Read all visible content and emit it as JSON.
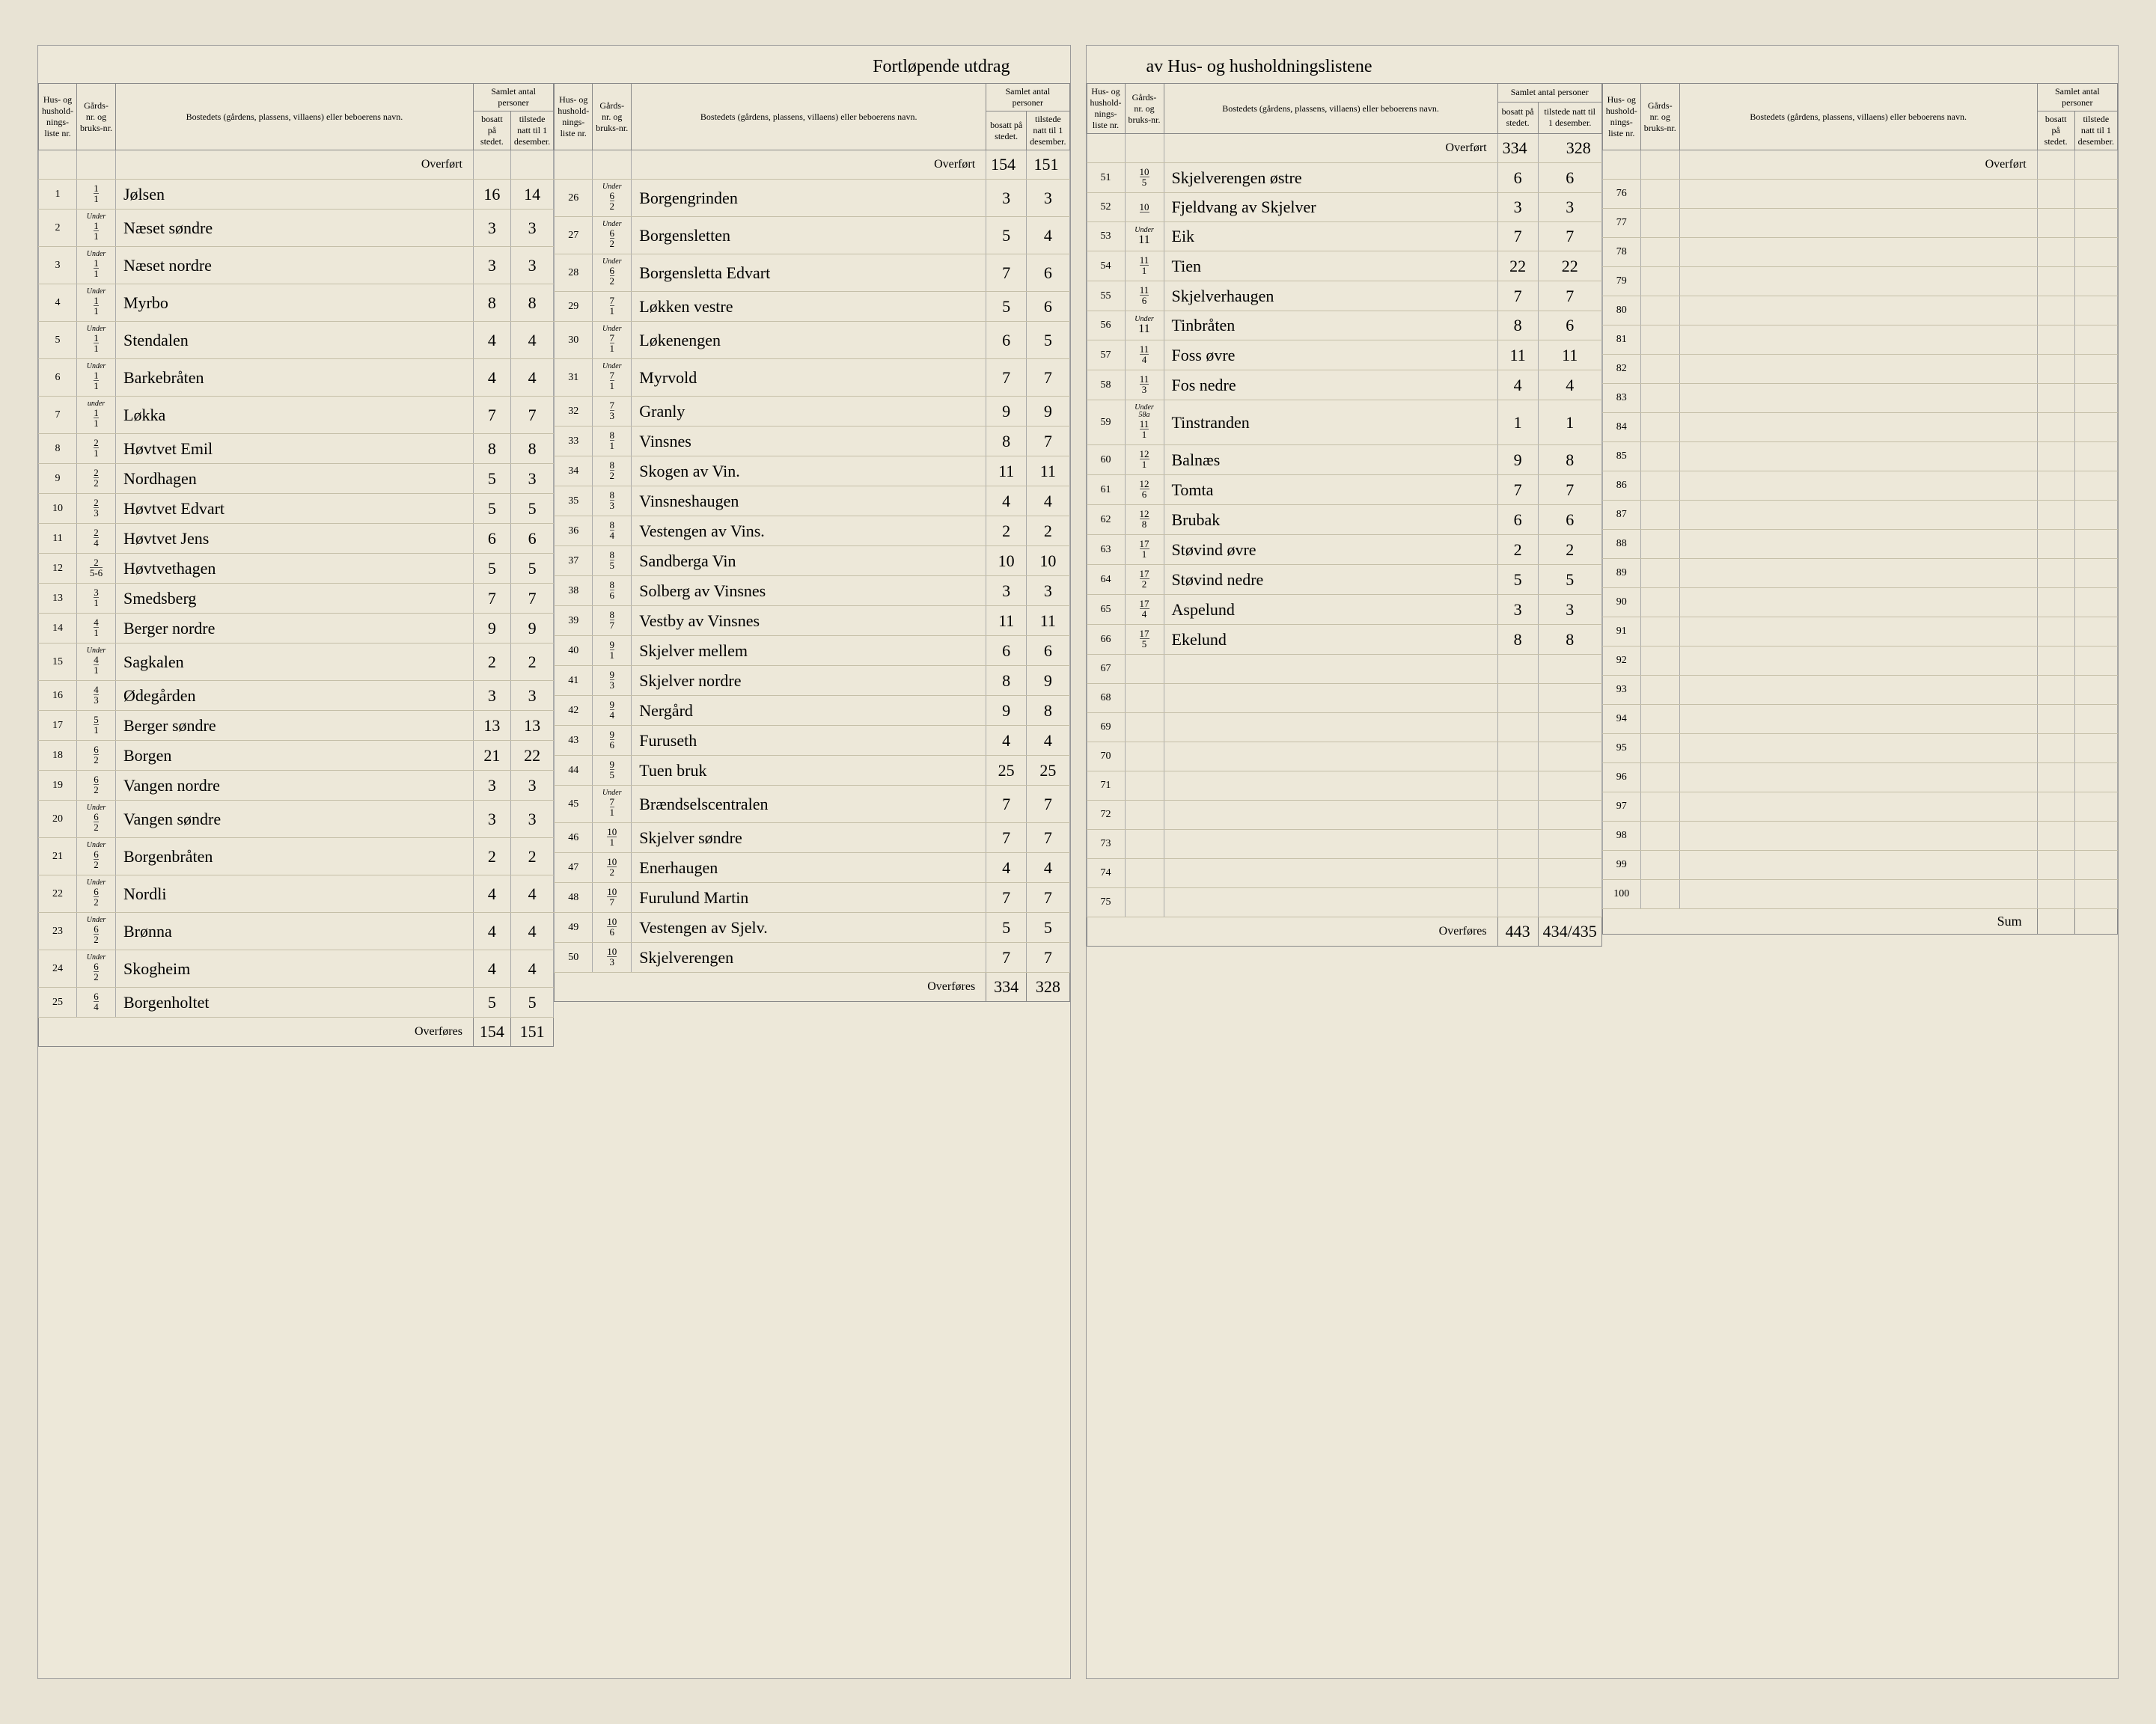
{
  "title_left": "Fortløpende utdrag",
  "title_right": "av Hus- og husholdningslistene",
  "headers": {
    "liste": "Hus- og hushold-nings-liste nr.",
    "gard": "Gårds-nr. og bruks-nr.",
    "bostedet": "Bostedets (gårdens, plassens, villaens) eller beboerens navn.",
    "samlet": "Samlet antal personer",
    "bosatt": "bosatt på stedet.",
    "tilstede": "tilstede natt til 1 desember."
  },
  "overfort_label": "Overført",
  "overfores_label": "Overføres",
  "sum_label": "Sum",
  "columns": [
    {
      "overfort": [
        "",
        ""
      ],
      "rows": [
        {
          "n": "1",
          "g_under": "",
          "g": "1/1",
          "name": "Jølsen",
          "b": "16",
          "t": "14"
        },
        {
          "n": "2",
          "g_under": "Under",
          "g": "1/1",
          "name": "Næset søndre",
          "b": "3",
          "t": "3"
        },
        {
          "n": "3",
          "g_under": "Under",
          "g": "1/1",
          "name": "Næset nordre",
          "b": "3",
          "t": "3"
        },
        {
          "n": "4",
          "g_under": "Under",
          "g": "1/1",
          "name": "Myrbo",
          "b": "8",
          "t": "8"
        },
        {
          "n": "5",
          "g_under": "Under",
          "g": "1/1",
          "name": "Stendalen",
          "b": "4",
          "t": "4"
        },
        {
          "n": "6",
          "g_under": "Under",
          "g": "1/1",
          "name": "Barkebråten",
          "b": "4",
          "t": "4"
        },
        {
          "n": "7",
          "g_under": "under",
          "g": "1/1",
          "name": "Løkka",
          "b": "7",
          "t": "7"
        },
        {
          "n": "8",
          "g_under": "",
          "g": "2/1",
          "name": "Høvtvet Emil",
          "b": "8",
          "t": "8"
        },
        {
          "n": "9",
          "g_under": "",
          "g": "2/2",
          "name": "Nordhagen",
          "b": "5",
          "t": "3"
        },
        {
          "n": "10",
          "g_under": "",
          "g": "2/3",
          "name": "Høvtvet Edvart",
          "b": "5",
          "t": "5"
        },
        {
          "n": "11",
          "g_under": "",
          "g": "2/4",
          "name": "Høvtvet Jens",
          "b": "6",
          "t": "6"
        },
        {
          "n": "12",
          "g_under": "",
          "g": "2/5-6",
          "name": "Høvtvethagen",
          "b": "5",
          "t": "5"
        },
        {
          "n": "13",
          "g_under": "",
          "g": "3/1",
          "name": "Smedsberg",
          "b": "7",
          "t": "7"
        },
        {
          "n": "14",
          "g_under": "",
          "g": "4/1",
          "name": "Berger nordre",
          "b": "9",
          "t": "9"
        },
        {
          "n": "15",
          "g_under": "Under",
          "g": "4/1",
          "name": "Sagkalen",
          "b": "2",
          "t": "2"
        },
        {
          "n": "16",
          "g_under": "",
          "g": "4/3",
          "name": "Ødegården",
          "b": "3",
          "t": "3"
        },
        {
          "n": "17",
          "g_under": "",
          "g": "5/1",
          "name": "Berger søndre",
          "b": "13",
          "t": "13"
        },
        {
          "n": "18",
          "g_under": "",
          "g": "6/2",
          "name": "Borgen",
          "b": "21",
          "t": "22"
        },
        {
          "n": "19",
          "g_under": "",
          "g": "6/2",
          "name": "Vangen nordre",
          "b": "3",
          "t": "3"
        },
        {
          "n": "20",
          "g_under": "Under",
          "g": "6/2",
          "name": "Vangen søndre",
          "b": "3",
          "t": "3"
        },
        {
          "n": "21",
          "g_under": "Under",
          "g": "6/2",
          "name": "Borgenbråten",
          "b": "2",
          "t": "2"
        },
        {
          "n": "22",
          "g_under": "Under",
          "g": "6/2",
          "name": "Nordli",
          "b": "4",
          "t": "4"
        },
        {
          "n": "23",
          "g_under": "Under",
          "g": "6/2",
          "name": "Brønna",
          "b": "4",
          "t": "4"
        },
        {
          "n": "24",
          "g_under": "Under",
          "g": "6/2",
          "name": "Skogheim",
          "b": "4",
          "t": "4"
        },
        {
          "n": "25",
          "g_under": "",
          "g": "6/4",
          "name": "Borgenholtet",
          "b": "5",
          "t": "5"
        }
      ],
      "overfores": [
        "154",
        "151"
      ]
    },
    {
      "overfort": [
        "154",
        "151"
      ],
      "rows": [
        {
          "n": "26",
          "g_under": "Under",
          "g": "6/2",
          "name": "Borgengrinden",
          "b": "3",
          "t": "3"
        },
        {
          "n": "27",
          "g_under": "Under",
          "g": "6/2",
          "name": "Borgensletten",
          "b": "5",
          "t": "4"
        },
        {
          "n": "28",
          "g_under": "Under",
          "g": "6/2",
          "name": "Borgensletta Edvart",
          "b": "7",
          "t": "6"
        },
        {
          "n": "29",
          "g_under": "",
          "g": "7/1",
          "name": "Løkken vestre",
          "b": "5",
          "t": "6"
        },
        {
          "n": "30",
          "g_under": "Under",
          "g": "7/1",
          "name": "Løkenengen",
          "b": "6",
          "t": "5"
        },
        {
          "n": "31",
          "g_under": "Under",
          "g": "7/1",
          "name": "Myrvold",
          "b": "7",
          "t": "7"
        },
        {
          "n": "32",
          "g_under": "",
          "g": "7/3",
          "name": "Granly",
          "b": "9",
          "t": "9"
        },
        {
          "n": "33",
          "g_under": "",
          "g": "8/1",
          "name": "Vinsnes",
          "b": "8",
          "t": "7"
        },
        {
          "n": "34",
          "g_under": "",
          "g": "8/2",
          "name": "Skogen av Vin.",
          "b": "11",
          "t": "11"
        },
        {
          "n": "35",
          "g_under": "",
          "g": "8/3",
          "name": "Vinsneshaugen",
          "b": "4",
          "t": "4"
        },
        {
          "n": "36",
          "g_under": "",
          "g": "8/4",
          "name": "Vestengen av Vins.",
          "b": "2",
          "t": "2"
        },
        {
          "n": "37",
          "g_under": "",
          "g": "8/5",
          "name": "Sandberga Vin",
          "b": "10",
          "t": "10"
        },
        {
          "n": "38",
          "g_under": "",
          "g": "8/6",
          "name": "Solberg av Vinsnes",
          "b": "3",
          "t": "3"
        },
        {
          "n": "39",
          "g_under": "",
          "g": "8/7",
          "name": "Vestby av Vinsnes",
          "b": "11",
          "t": "11"
        },
        {
          "n": "40",
          "g_under": "",
          "g": "9/1",
          "name": "Skjelver mellem",
          "b": "6",
          "t": "6"
        },
        {
          "n": "41",
          "g_under": "",
          "g": "9/3",
          "name": "Skjelver nordre",
          "b": "8",
          "t": "9"
        },
        {
          "n": "42",
          "g_under": "",
          "g": "9/4",
          "name": "Nergård",
          "b": "9",
          "t": "8"
        },
        {
          "n": "43",
          "g_under": "",
          "g": "9/6",
          "name": "Furuseth",
          "b": "4",
          "t": "4"
        },
        {
          "n": "44",
          "g_under": "",
          "g": "9/5",
          "name": "Tuen bruk",
          "b": "25",
          "t": "25"
        },
        {
          "n": "45",
          "g_under": "Under",
          "g": "7/1",
          "name": "Brændselscentralen",
          "b": "7",
          "t": "7"
        },
        {
          "n": "46",
          "g_under": "",
          "g": "10/1",
          "name": "Skjelver søndre",
          "b": "7",
          "t": "7"
        },
        {
          "n": "47",
          "g_under": "",
          "g": "10/2",
          "name": "Enerhaugen",
          "b": "4",
          "t": "4"
        },
        {
          "n": "48",
          "g_under": "",
          "g": "10/7",
          "name": "Furulund Martin",
          "b": "7",
          "t": "7"
        },
        {
          "n": "49",
          "g_under": "",
          "g": "10/6",
          "name": "Vestengen av Sjelv.",
          "b": "5",
          "t": "5"
        },
        {
          "n": "50",
          "g_under": "",
          "g": "10/3",
          "name": "Skjelverengen",
          "b": "7",
          "t": "7"
        }
      ],
      "overfores": [
        "334",
        "328"
      ]
    },
    {
      "overfort": [
        "334",
        "328"
      ],
      "rows": [
        {
          "n": "51",
          "g_under": "",
          "g": "10/5",
          "name": "Skjelverengen østre",
          "b": "6",
          "t": "6"
        },
        {
          "n": "52",
          "g_under": "",
          "g": "10/",
          "name": "Fjeldvang av Skjelver",
          "b": "3",
          "t": "3"
        },
        {
          "n": "53",
          "g_under": "Under",
          "g": "11",
          "name": "Eik",
          "b": "7",
          "t": "7"
        },
        {
          "n": "54",
          "g_under": "",
          "g": "11/1",
          "name": "Tien",
          "b": "22",
          "t": "22"
        },
        {
          "n": "55",
          "g_under": "",
          "g": "11/6",
          "name": "Skjelverhaugen",
          "b": "7",
          "t": "7"
        },
        {
          "n": "56",
          "g_under": "Under",
          "g": "11",
          "name": "Tinbråten",
          "b": "8",
          "t": "6"
        },
        {
          "n": "57",
          "g_under": "",
          "g": "11/4",
          "name": "Foss øvre",
          "b": "11",
          "t": "11"
        },
        {
          "n": "58",
          "g_under": "",
          "g": "11/3",
          "name": "Fos nedre",
          "b": "4",
          "t": "4"
        },
        {
          "n": "59",
          "g_under": "Under 58a",
          "g": "11/1",
          "name": "Tinstranden",
          "b": "1",
          "t": "1"
        },
        {
          "n": "60",
          "g_under": "",
          "g": "12/1",
          "name": "Balnæs",
          "b": "9",
          "t": "8"
        },
        {
          "n": "61",
          "g_under": "",
          "g": "12/6",
          "name": "Tomta",
          "b": "7",
          "t": "7"
        },
        {
          "n": "62",
          "g_under": "",
          "g": "12/8",
          "name": "Brubak",
          "b": "6",
          "t": "6"
        },
        {
          "n": "63",
          "g_under": "",
          "g": "17/1",
          "name": "Støvind øvre",
          "b": "2",
          "t": "2"
        },
        {
          "n": "64",
          "g_under": "",
          "g": "17/2",
          "name": "Støvind nedre",
          "b": "5",
          "t": "5"
        },
        {
          "n": "65",
          "g_under": "",
          "g": "17/4",
          "name": "Aspelund",
          "b": "3",
          "t": "3"
        },
        {
          "n": "66",
          "g_under": "",
          "g": "17/5",
          "name": "Ekelund",
          "b": "8",
          "t": "8"
        },
        {
          "n": "67",
          "g_under": "",
          "g": "",
          "name": "",
          "b": "",
          "t": ""
        },
        {
          "n": "68",
          "g_under": "",
          "g": "",
          "name": "",
          "b": "",
          "t": ""
        },
        {
          "n": "69",
          "g_under": "",
          "g": "",
          "name": "",
          "b": "",
          "t": ""
        },
        {
          "n": "70",
          "g_under": "",
          "g": "",
          "name": "",
          "b": "",
          "t": ""
        },
        {
          "n": "71",
          "g_under": "",
          "g": "",
          "name": "",
          "b": "",
          "t": ""
        },
        {
          "n": "72",
          "g_under": "",
          "g": "",
          "name": "",
          "b": "",
          "t": ""
        },
        {
          "n": "73",
          "g_under": "",
          "g": "",
          "name": "",
          "b": "",
          "t": ""
        },
        {
          "n": "74",
          "g_under": "",
          "g": "",
          "name": "",
          "b": "",
          "t": ""
        },
        {
          "n": "75",
          "g_under": "",
          "g": "",
          "name": "",
          "b": "",
          "t": ""
        }
      ],
      "overfores": [
        "443",
        "434/435"
      ]
    },
    {
      "overfort": [
        "",
        ""
      ],
      "rows": [
        {
          "n": "76",
          "g_under": "",
          "g": "",
          "name": "",
          "b": "",
          "t": ""
        },
        {
          "n": "77",
          "g_under": "",
          "g": "",
          "name": "",
          "b": "",
          "t": ""
        },
        {
          "n": "78",
          "g_under": "",
          "g": "",
          "name": "",
          "b": "",
          "t": ""
        },
        {
          "n": "79",
          "g_under": "",
          "g": "",
          "name": "",
          "b": "",
          "t": ""
        },
        {
          "n": "80",
          "g_under": "",
          "g": "",
          "name": "",
          "b": "",
          "t": ""
        },
        {
          "n": "81",
          "g_under": "",
          "g": "",
          "name": "",
          "b": "",
          "t": ""
        },
        {
          "n": "82",
          "g_under": "",
          "g": "",
          "name": "",
          "b": "",
          "t": ""
        },
        {
          "n": "83",
          "g_under": "",
          "g": "",
          "name": "",
          "b": "",
          "t": ""
        },
        {
          "n": "84",
          "g_under": "",
          "g": "",
          "name": "",
          "b": "",
          "t": ""
        },
        {
          "n": "85",
          "g_under": "",
          "g": "",
          "name": "",
          "b": "",
          "t": ""
        },
        {
          "n": "86",
          "g_under": "",
          "g": "",
          "name": "",
          "b": "",
          "t": ""
        },
        {
          "n": "87",
          "g_under": "",
          "g": "",
          "name": "",
          "b": "",
          "t": ""
        },
        {
          "n": "88",
          "g_under": "",
          "g": "",
          "name": "",
          "b": "",
          "t": ""
        },
        {
          "n": "89",
          "g_under": "",
          "g": "",
          "name": "",
          "b": "",
          "t": ""
        },
        {
          "n": "90",
          "g_under": "",
          "g": "",
          "name": "",
          "b": "",
          "t": ""
        },
        {
          "n": "91",
          "g_under": "",
          "g": "",
          "name": "",
          "b": "",
          "t": ""
        },
        {
          "n": "92",
          "g_under": "",
          "g": "",
          "name": "",
          "b": "",
          "t": ""
        },
        {
          "n": "93",
          "g_under": "",
          "g": "",
          "name": "",
          "b": "",
          "t": ""
        },
        {
          "n": "94",
          "g_under": "",
          "g": "",
          "name": "",
          "b": "",
          "t": ""
        },
        {
          "n": "95",
          "g_under": "",
          "g": "",
          "name": "",
          "b": "",
          "t": ""
        },
        {
          "n": "96",
          "g_under": "",
          "g": "",
          "name": "",
          "b": "",
          "t": ""
        },
        {
          "n": "97",
          "g_under": "",
          "g": "",
          "name": "",
          "b": "",
          "t": ""
        },
        {
          "n": "98",
          "g_under": "",
          "g": "",
          "name": "",
          "b": "",
          "t": ""
        },
        {
          "n": "99",
          "g_under": "",
          "g": "",
          "name": "",
          "b": "",
          "t": ""
        },
        {
          "n": "100",
          "g_under": "",
          "g": "",
          "name": "",
          "b": "",
          "t": ""
        }
      ],
      "overfores": [
        "",
        ""
      ],
      "sum": true
    }
  ]
}
